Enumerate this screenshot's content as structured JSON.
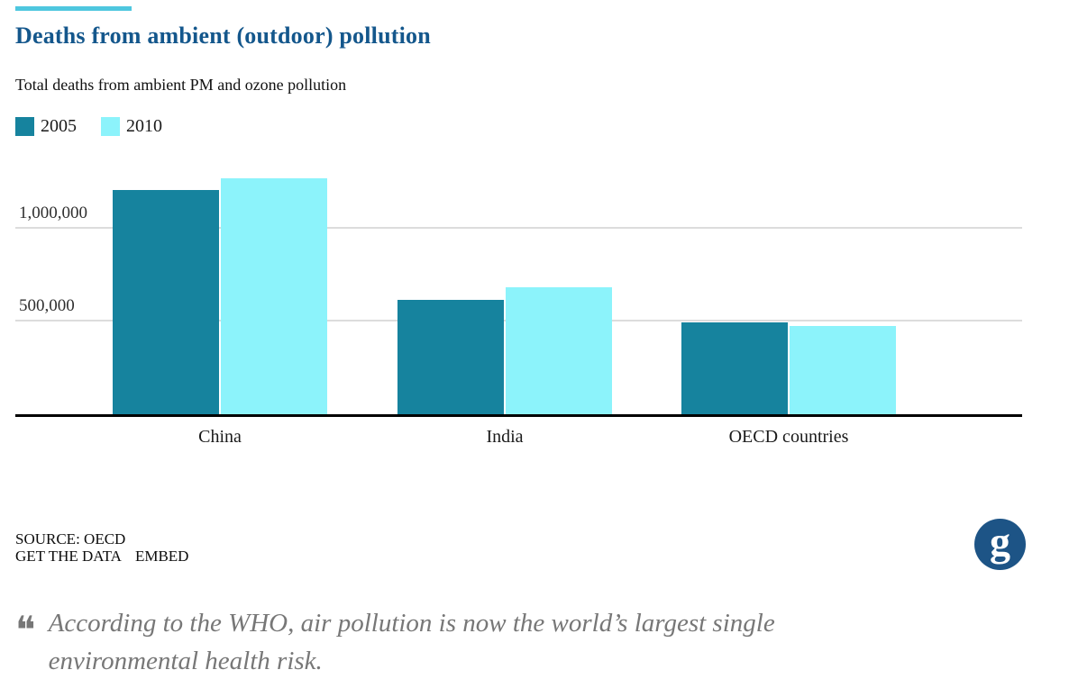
{
  "page": {
    "background": "#ffffff",
    "accent_color": "#4EC7DF"
  },
  "header": {
    "title": "Deaths from ambient (outdoor) pollution",
    "title_color": "#14578C",
    "subtitle": "Total deaths from ambient PM and ozone pollution"
  },
  "chart_data": {
    "type": "bar",
    "title": "Deaths from ambient (outdoor) pollution",
    "subtitle": "Total deaths from ambient PM and ozone pollution",
    "categories": [
      "China",
      "India",
      "OECD countries"
    ],
    "series": [
      {
        "name": "2005",
        "color": "#16839E",
        "values": [
          1210000,
          615000,
          495000
        ]
      },
      {
        "name": "2010",
        "color": "#8CF3FB",
        "values": [
          1272000,
          686000,
          476000
        ]
      }
    ],
    "xlabel": "",
    "ylabel": "",
    "ylim": [
      0,
      1320000
    ],
    "yticks": [
      {
        "value": 500000,
        "label": "500,000"
      },
      {
        "value": 1000000,
        "label": "1,000,000"
      }
    ],
    "grid": true,
    "gridline_color": "#DCDCDC",
    "axis_color": "#000000",
    "legend_position": "top-left"
  },
  "footer": {
    "source": "SOURCE: OECD",
    "get_data_label": "GET THE DATA",
    "embed_label": "EMBED",
    "logo": "guardian-g-logo",
    "logo_color": "#1D5486",
    "logo_letter": "g"
  },
  "quote": {
    "mark": "❝",
    "text": "According to the WHO, air pollution is now the world’s largest single environmental health risk.",
    "color": "#777777"
  }
}
